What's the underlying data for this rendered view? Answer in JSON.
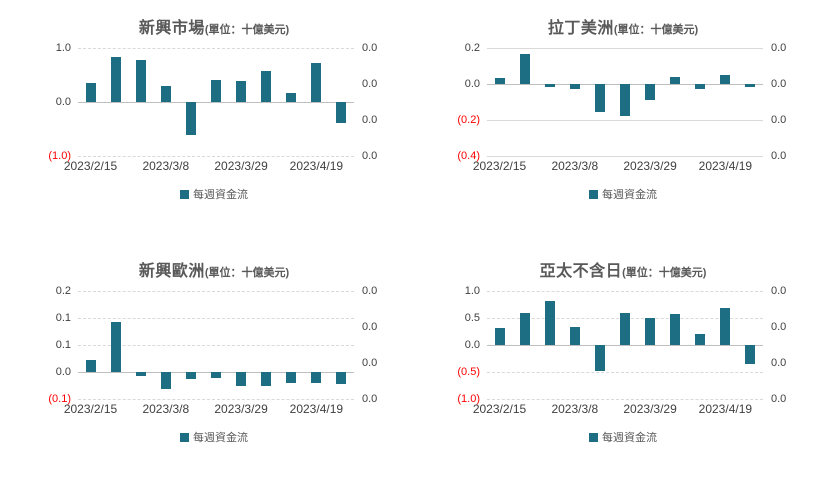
{
  "page": {
    "background": "#ffffff"
  },
  "colors": {
    "bar": "#1d6e82",
    "gridline": "#d9d9d9",
    "zero_line": "#bfbfbf",
    "title": "#595959",
    "tick": "#404040",
    "negative_tick": "#ff0000",
    "xlabel": "#404040",
    "legend_text": "#595959"
  },
  "chart_data": [
    {
      "type": "bar",
      "title": "新興市場",
      "unit_suffix": "(單位：十億美元)",
      "legend": "每週資金流",
      "left_ticks": [
        "1.0",
        "0.0",
        "(1.0)"
      ],
      "right_ticks": [
        "0.0",
        "0.0",
        "0.0",
        "0.0"
      ],
      "x_tick_labels": [
        "2023/2/15",
        "2023/3/8",
        "2023/3/29",
        "2023/4/19"
      ],
      "x_tick_bar_indices": [
        0,
        3,
        6,
        9
      ],
      "values": [
        0.36,
        0.83,
        0.78,
        0.3,
        -0.62,
        0.41,
        0.39,
        0.57,
        0.16,
        0.73,
        -0.38
      ],
      "ylim": [
        -1.0,
        1.0
      ],
      "grid_style": "dashed",
      "ylabel": "",
      "xlabel": ""
    },
    {
      "type": "bar",
      "title": "拉丁美洲",
      "unit_suffix": "(單位：十億美元)",
      "legend": "每週資金流",
      "left_ticks": [
        "0.2",
        "0.0",
        "(0.2)",
        "(0.4)"
      ],
      "right_ticks": [
        "0.0",
        "0.0",
        "0.0",
        "0.0"
      ],
      "x_tick_labels": [
        "2023/2/15",
        "2023/3/8",
        "2023/3/29",
        "2023/4/19"
      ],
      "x_tick_bar_indices": [
        0,
        3,
        6,
        9
      ],
      "values": [
        0.035,
        0.165,
        -0.015,
        -0.03,
        -0.155,
        -0.18,
        -0.09,
        0.04,
        -0.03,
        0.05,
        -0.015
      ],
      "ylim": [
        -0.4,
        0.2
      ],
      "grid_style": "solid",
      "ylabel": "",
      "xlabel": ""
    },
    {
      "type": "bar",
      "title": "新興歐洲",
      "unit_suffix": "(單位：十億美元)",
      "legend": "每週資金流",
      "left_ticks": [
        "0.2",
        "0.1",
        "0.1",
        "0.0",
        "(0.1)"
      ],
      "right_ticks": [
        "0.0",
        "0.0",
        "0.0",
        "0.0"
      ],
      "x_tick_labels": [
        "2023/2/15",
        "2023/3/8",
        "2023/3/29",
        "2023/4/19"
      ],
      "x_tick_bar_indices": [
        0,
        3,
        6,
        9
      ],
      "values": [
        0.03,
        0.13,
        -0.01,
        -0.045,
        -0.018,
        -0.016,
        -0.035,
        -0.035,
        -0.028,
        -0.028,
        -0.03
      ],
      "ylim": [
        -0.07,
        0.21
      ],
      "grid_style": "dashed",
      "ylabel": "",
      "xlabel": ""
    },
    {
      "type": "bar",
      "title": "亞太不含日",
      "unit_suffix": "(單位：十億美元)",
      "legend": "每週資金流",
      "left_ticks": [
        "1.0",
        "0.5",
        "0.0",
        "(0.5)",
        "(1.0)"
      ],
      "right_ticks": [
        "0.0",
        "0.0",
        "0.0",
        "0.0"
      ],
      "x_tick_labels": [
        "2023/2/15",
        "2023/3/8",
        "2023/3/29",
        "2023/4/19"
      ],
      "x_tick_bar_indices": [
        0,
        3,
        6,
        9
      ],
      "values": [
        0.32,
        0.59,
        0.81,
        0.34,
        -0.48,
        0.59,
        0.5,
        0.57,
        0.21,
        0.68,
        -0.35
      ],
      "ylim": [
        -1.0,
        1.0
      ],
      "grid_style": "dashed",
      "ylabel": "",
      "xlabel": ""
    }
  ]
}
